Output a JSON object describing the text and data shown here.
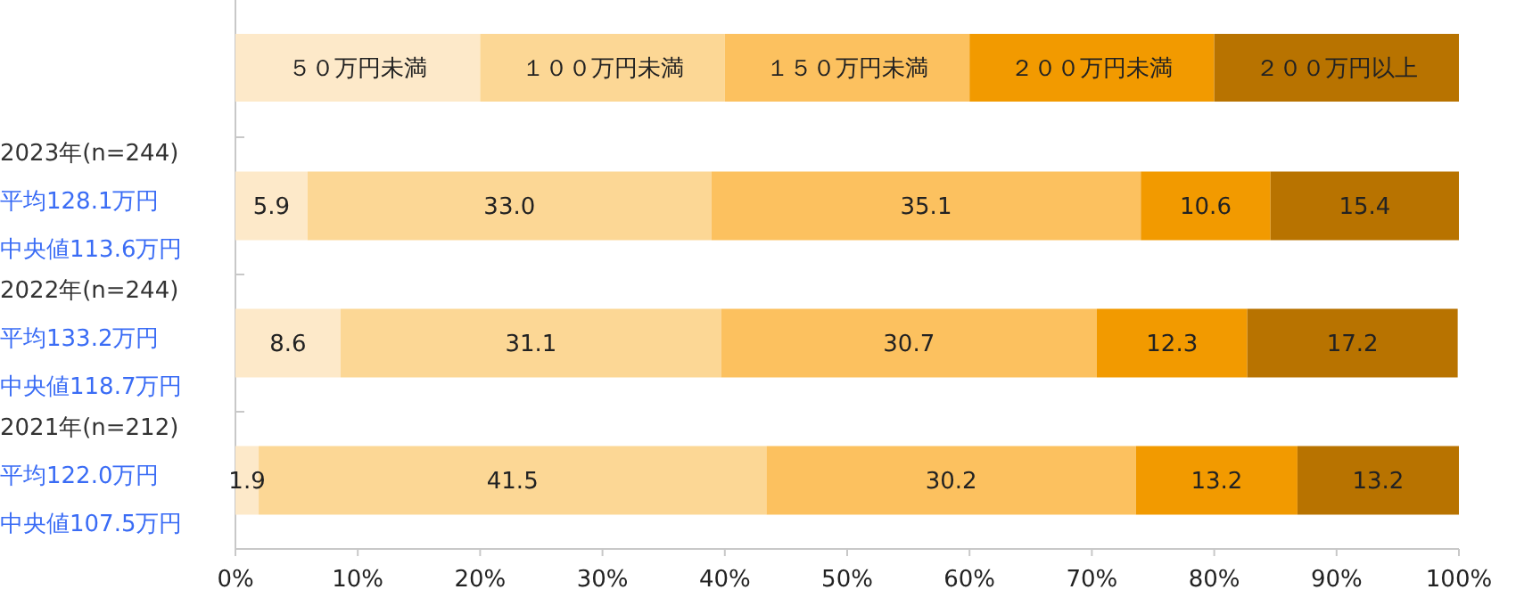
{
  "chart_data": {
    "type": "bar",
    "orientation": "horizontal",
    "stacked": true,
    "legend": "top",
    "categories": [
      "2023年(n=244)",
      "2022年(n=244)",
      "2021年(n=212)"
    ],
    "annotations": [
      "平均128.1万円",
      "中央値113.6万円",
      "平均133.2万円",
      "中央値118.7万円",
      "平均122.0万円",
      "中央値107.5万円"
    ],
    "series": [
      {
        "name": "５０万円未満",
        "color": "#fde9c9",
        "values": [
          5.9,
          8.6,
          1.9
        ],
        "value_labels": [
          "5.9",
          "8.6",
          "1.9"
        ]
      },
      {
        "name": "１００万円未満",
        "color": "#fcd795",
        "values": [
          33.0,
          31.1,
          41.5
        ],
        "value_labels": [
          "33.0",
          "31.1",
          "41.5"
        ]
      },
      {
        "name": "１５０万円未満",
        "color": "#fcc15f",
        "values": [
          35.1,
          30.7,
          30.2
        ],
        "value_labels": [
          "35.1",
          "30.7",
          "30.2"
        ]
      },
      {
        "name": "２００万円未満",
        "color": "#f29a00",
        "values": [
          10.6,
          12.3,
          13.2
        ],
        "value_labels": [
          "10.6",
          "12.3",
          "13.2"
        ]
      },
      {
        "name": "２００万円以上",
        "color": "#b87300",
        "values": [
          15.4,
          17.2,
          13.2
        ],
        "value_labels": [
          "15.4",
          "17.2",
          "13.2"
        ]
      }
    ],
    "xlim": [
      0,
      100
    ],
    "xticks": [
      {
        "value": 0,
        "label": "0%"
      },
      {
        "value": 10,
        "label": "10%"
      },
      {
        "value": 20,
        "label": "20%"
      },
      {
        "value": 30,
        "label": "30%"
      },
      {
        "value": 40,
        "label": "40%"
      },
      {
        "value": 50,
        "label": "50%"
      },
      {
        "value": 60,
        "label": "60%"
      },
      {
        "value": 70,
        "label": "70%"
      },
      {
        "value": 80,
        "label": "80%"
      },
      {
        "value": 90,
        "label": "90%"
      },
      {
        "value": 100,
        "label": "100%"
      }
    ]
  }
}
